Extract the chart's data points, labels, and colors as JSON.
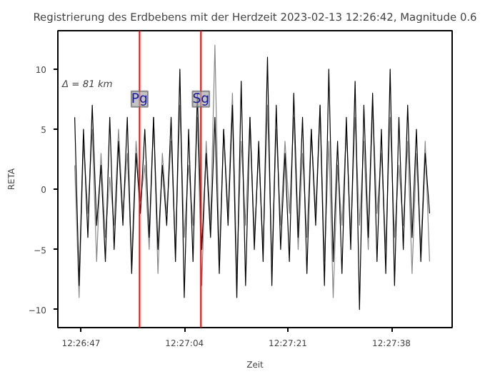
{
  "chart_data": {
    "type": "line",
    "title": "Registrierung des Erdbebens mit der Herdzeit 2023-02-13 12:26:42, Magnitude 0.6",
    "xlabel": "Zeit",
    "ylabel": "RETA",
    "annotations": [
      "Δ = 81 km"
    ],
    "x": [
      12.4461,
      12.4463,
      12.4465,
      12.4467,
      12.4469,
      12.4471,
      12.4473,
      12.4475,
      12.4477,
      12.4479,
      12.4481,
      12.4483,
      12.4485,
      12.4487,
      12.4489,
      12.4491,
      12.4493,
      12.4495,
      12.4497,
      12.4499,
      12.4501,
      12.4503,
      12.4505,
      12.4507,
      12.4509,
      12.4511,
      12.4513,
      12.4515,
      12.4517,
      12.4519,
      12.4521,
      12.4523,
      12.4525,
      12.4527,
      12.4529,
      12.4531,
      12.4533,
      12.4535,
      12.4537,
      12.4539,
      12.4541,
      12.4543,
      12.4545,
      12.4547,
      12.4549,
      12.4551,
      12.4553,
      12.4555,
      12.4557,
      12.4559,
      12.4561,
      12.4563,
      12.4565,
      12.4567,
      12.4569,
      12.4571,
      12.4573,
      12.4575,
      12.4577,
      12.4579,
      12.4581,
      12.4583,
      12.4585,
      12.4587,
      12.4589,
      12.4591,
      12.4593,
      12.4595,
      12.4597,
      12.4599,
      12.4601,
      12.4603,
      12.4605,
      12.4607,
      12.4609,
      12.4611,
      12.4613,
      12.4615,
      12.4617,
      12.4619,
      12.4621,
      12.4623
    ],
    "series": [
      {
        "color": "#888888",
        "values": [
          2,
          -9,
          4,
          -2,
          5,
          -6,
          3,
          -4,
          1,
          -3,
          5,
          -2,
          3,
          -6,
          4,
          -1,
          2,
          -5,
          6,
          -7,
          3,
          -2,
          4,
          -5,
          7,
          -4,
          2,
          -3,
          6,
          -8,
          4,
          -3,
          12,
          -6,
          5,
          -2,
          8,
          -7,
          4,
          -3,
          6,
          -4,
          3,
          -5,
          7,
          -6,
          5,
          -3,
          4,
          -2,
          6,
          -5,
          3,
          -4,
          5,
          -2,
          7,
          -6,
          4,
          -9,
          2,
          -3,
          5,
          -4,
          6,
          -3,
          4,
          -5,
          7,
          -2,
          3,
          -5,
          6,
          -4,
          2,
          -3,
          4,
          -7,
          3,
          -5,
          4,
          -6
        ]
      },
      {
        "color": "#000000",
        "values": [
          6,
          -8,
          5,
          -4,
          7,
          -3,
          2,
          -6,
          6,
          -5,
          4,
          -3,
          6,
          -7,
          3,
          -2,
          5,
          -4,
          6,
          -5,
          2,
          -3,
          6,
          -6,
          10,
          -9,
          5,
          -6,
          8,
          -5,
          3,
          -4,
          6,
          -7,
          5,
          -3,
          7,
          -9,
          9,
          -8,
          6,
          -5,
          4,
          -6,
          11,
          -8,
          7,
          -5,
          3,
          -6,
          8,
          -4,
          6,
          -7,
          5,
          -3,
          7,
          -8,
          10,
          -6,
          4,
          -7,
          6,
          -5,
          9,
          -10,
          7,
          -4,
          8,
          -6,
          5,
          -7,
          10,
          -8,
          6,
          -5,
          7,
          -4,
          5,
          -6,
          3,
          -2
        ]
      }
    ],
    "xlim": [
      12.44533,
      12.46333
    ],
    "ylim": [
      -11.5,
      13.2
    ],
    "xticks": [
      {
        "value": 12.44639,
        "label": "12:26:47"
      },
      {
        "value": 12.45111,
        "label": "12:27:04"
      },
      {
        "value": 12.45583,
        "label": "12:27:21"
      },
      {
        "value": 12.46056,
        "label": "12:27:38"
      }
    ],
    "yticks": [
      -10,
      -5,
      0,
      5,
      10
    ],
    "ref_lines": [
      {
        "axis": "x",
        "value": 12.44906,
        "label": "Pg",
        "color": "#ff0000"
      },
      {
        "axis": "x",
        "value": 12.45186,
        "label": "Sg",
        "color": "#ff0000"
      }
    ],
    "grid": false,
    "marker": "none",
    "line_style": "solid"
  }
}
